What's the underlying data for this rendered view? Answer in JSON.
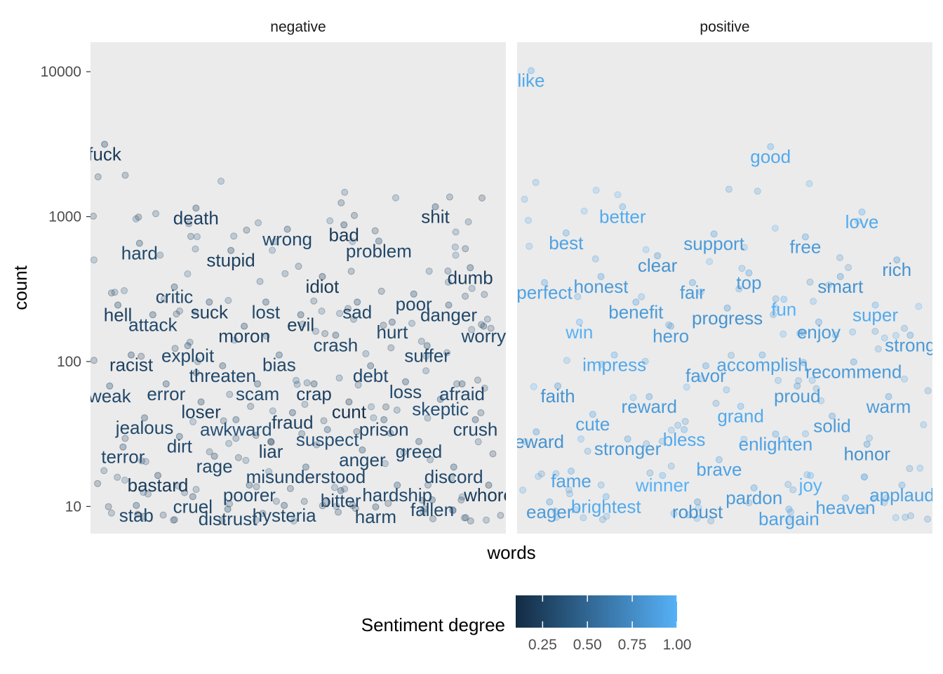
{
  "chart_data": {
    "type": "scatter",
    "panels": [
      "negative",
      "positive"
    ],
    "xlabel": "words",
    "ylabel": "count",
    "y_scale": "log10",
    "ylim": [
      6.5,
      16000
    ],
    "y_ticks": [
      "10",
      "100",
      "1000",
      "10000"
    ],
    "y_tick_values": [
      10,
      100,
      1000,
      10000
    ],
    "grid": false,
    "panel_background": "#ebebeb",
    "legend": {
      "title": "Sentiment degree",
      "position": "bottom",
      "ticks": [
        "0.25",
        "0.50",
        "0.75",
        "1.00"
      ],
      "tick_values": [
        0.25,
        0.5,
        0.75,
        1.0
      ],
      "range": [
        0.1,
        1.0
      ],
      "color_low": "#132B43",
      "color_high": "#56B1F7"
    },
    "labeled_points": {
      "negative": [
        {
          "word": "fuck",
          "count": 2700,
          "degree": 0.2
        },
        {
          "word": "bad",
          "count": 750,
          "degree": 0.2
        },
        {
          "word": "death",
          "count": 980,
          "degree": 0.25
        },
        {
          "word": "shit",
          "count": 1000,
          "degree": 0.25
        },
        {
          "word": "wrong",
          "count": 700,
          "degree": 0.3
        },
        {
          "word": "hard",
          "count": 560,
          "degree": 0.3
        },
        {
          "word": "problem",
          "count": 580,
          "degree": 0.3
        },
        {
          "word": "stupid",
          "count": 500,
          "degree": 0.25
        },
        {
          "word": "dumb",
          "count": 380,
          "degree": 0.25
        },
        {
          "word": "idiot",
          "count": 330,
          "degree": 0.2
        },
        {
          "word": "critic",
          "count": 280,
          "degree": 0.3
        },
        {
          "word": "poor",
          "count": 250,
          "degree": 0.3
        },
        {
          "word": "lost",
          "count": 220,
          "degree": 0.3
        },
        {
          "word": "hell",
          "count": 210,
          "degree": 0.25
        },
        {
          "word": "sad",
          "count": 220,
          "degree": 0.3
        },
        {
          "word": "suck",
          "count": 220,
          "degree": 0.25
        },
        {
          "word": "danger",
          "count": 210,
          "degree": 0.3
        },
        {
          "word": "evil",
          "count": 180,
          "degree": 0.25
        },
        {
          "word": "attack",
          "count": 180,
          "degree": 0.3
        },
        {
          "word": "hurt",
          "count": 160,
          "degree": 0.3
        },
        {
          "word": "moron",
          "count": 150,
          "degree": 0.25
        },
        {
          "word": "worry",
          "count": 150,
          "degree": 0.3
        },
        {
          "word": "crash",
          "count": 130,
          "degree": 0.3
        },
        {
          "word": "exploit",
          "count": 110,
          "degree": 0.3
        },
        {
          "word": "suffer",
          "count": 110,
          "degree": 0.3
        },
        {
          "word": "bias",
          "count": 95,
          "degree": 0.3
        },
        {
          "word": "racist",
          "count": 95,
          "degree": 0.25
        },
        {
          "word": "debt",
          "count": 80,
          "degree": 0.3
        },
        {
          "word": "threaten",
          "count": 80,
          "degree": 0.3
        },
        {
          "word": "afraid",
          "count": 60,
          "degree": 0.3
        },
        {
          "word": "crap",
          "count": 60,
          "degree": 0.25
        },
        {
          "word": "error",
          "count": 60,
          "degree": 0.3
        },
        {
          "word": "loss",
          "count": 62,
          "degree": 0.3
        },
        {
          "word": "scam",
          "count": 60,
          "degree": 0.3
        },
        {
          "word": "weak",
          "count": 58,
          "degree": 0.3
        },
        {
          "word": "cunt",
          "count": 45,
          "degree": 0.15
        },
        {
          "word": "loser",
          "count": 45,
          "degree": 0.25
        },
        {
          "word": "skeptic",
          "count": 47,
          "degree": 0.35
        },
        {
          "word": "fraud",
          "count": 38,
          "degree": 0.25
        },
        {
          "word": "jealous",
          "count": 35,
          "degree": 0.3
        },
        {
          "word": "prison",
          "count": 34,
          "degree": 0.3
        },
        {
          "word": "awkward",
          "count": 34,
          "degree": 0.35
        },
        {
          "word": "crush",
          "count": 34,
          "degree": 0.3
        },
        {
          "word": "suspect",
          "count": 29,
          "degree": 0.35
        },
        {
          "word": "dirt",
          "count": 26,
          "degree": 0.3
        },
        {
          "word": "greed",
          "count": 24,
          "degree": 0.3
        },
        {
          "word": "liar",
          "count": 24,
          "degree": 0.25
        },
        {
          "word": "terror",
          "count": 22,
          "degree": 0.3
        },
        {
          "word": "anger",
          "count": 21,
          "degree": 0.3
        },
        {
          "word": "rage",
          "count": 19,
          "degree": 0.3
        },
        {
          "word": "discord",
          "count": 16,
          "degree": 0.3
        },
        {
          "word": "misunderstood",
          "count": 16,
          "degree": 0.3
        },
        {
          "word": "bastard",
          "count": 14,
          "degree": 0.2
        },
        {
          "word": "hardship",
          "count": 12,
          "degree": 0.3
        },
        {
          "word": "poorer",
          "count": 12,
          "degree": 0.3
        },
        {
          "word": "whore",
          "count": 12,
          "degree": 0.2
        },
        {
          "word": "bitter",
          "count": 11,
          "degree": 0.3
        },
        {
          "word": "cruel",
          "count": 10,
          "degree": 0.3
        },
        {
          "word": "fallen",
          "count": 9.5,
          "degree": 0.3
        },
        {
          "word": "hysteria",
          "count": 8.7,
          "degree": 0.3
        },
        {
          "word": "stab",
          "count": 8.7,
          "degree": 0.3
        },
        {
          "word": "harm",
          "count": 8.5,
          "degree": 0.3
        },
        {
          "word": "distrust",
          "count": 8.2,
          "degree": 0.3
        }
      ],
      "positive": [
        {
          "word": "like",
          "count": 8700,
          "degree": 0.95
        },
        {
          "word": "good",
          "count": 2600,
          "degree": 0.95
        },
        {
          "word": "better",
          "count": 1000,
          "degree": 0.95
        },
        {
          "word": "love",
          "count": 920,
          "degree": 0.95
        },
        {
          "word": "support",
          "count": 650,
          "degree": 0.85
        },
        {
          "word": "best",
          "count": 660,
          "degree": 0.9
        },
        {
          "word": "free",
          "count": 620,
          "degree": 0.85
        },
        {
          "word": "clear",
          "count": 460,
          "degree": 0.8
        },
        {
          "word": "rich",
          "count": 430,
          "degree": 0.8
        },
        {
          "word": "top",
          "count": 350,
          "degree": 0.85
        },
        {
          "word": "honest",
          "count": 330,
          "degree": 0.85
        },
        {
          "word": "smart",
          "count": 330,
          "degree": 0.8
        },
        {
          "word": "fair",
          "count": 300,
          "degree": 0.85
        },
        {
          "word": "perfect",
          "count": 300,
          "degree": 0.9
        },
        {
          "word": "fun",
          "count": 230,
          "degree": 1.0
        },
        {
          "word": "benefit",
          "count": 220,
          "degree": 0.85
        },
        {
          "word": "super",
          "count": 210,
          "degree": 0.95
        },
        {
          "word": "progress",
          "count": 200,
          "degree": 0.8
        },
        {
          "word": "win",
          "count": 160,
          "degree": 1.0
        },
        {
          "word": "enjoy",
          "count": 160,
          "degree": 0.85
        },
        {
          "word": "hero",
          "count": 150,
          "degree": 0.85
        },
        {
          "word": "strong",
          "count": 130,
          "degree": 0.85
        },
        {
          "word": "accomplish",
          "count": 95,
          "degree": 0.9
        },
        {
          "word": "impress",
          "count": 95,
          "degree": 0.95
        },
        {
          "word": "recommend",
          "count": 85,
          "degree": 0.85
        },
        {
          "word": "favor",
          "count": 80,
          "degree": 0.85
        },
        {
          "word": "faith",
          "count": 58,
          "degree": 0.8
        },
        {
          "word": "proud",
          "count": 58,
          "degree": 0.85
        },
        {
          "word": "reward",
          "count": 49,
          "degree": 0.85
        },
        {
          "word": "warm",
          "count": 49,
          "degree": 0.85
        },
        {
          "word": "grand",
          "count": 42,
          "degree": 0.95
        },
        {
          "word": "cute",
          "count": 37,
          "degree": 0.9
        },
        {
          "word": "solid",
          "count": 36,
          "degree": 0.85
        },
        {
          "word": "bless",
          "count": 29,
          "degree": 0.95
        },
        {
          "word": "reward",
          "count": 28,
          "degree": 0.8
        },
        {
          "word": "enlighten",
          "count": 27,
          "degree": 0.9
        },
        {
          "word": "stronger",
          "count": 25,
          "degree": 0.85
        },
        {
          "word": "honor",
          "count": 23,
          "degree": 0.8
        },
        {
          "word": "brave",
          "count": 18,
          "degree": 0.9
        },
        {
          "word": "fame",
          "count": 15,
          "degree": 0.9
        },
        {
          "word": "joy",
          "count": 14,
          "degree": 1.0
        },
        {
          "word": "winner",
          "count": 14,
          "degree": 1.0
        },
        {
          "word": "applaud",
          "count": 12,
          "degree": 0.9
        },
        {
          "word": "pardon",
          "count": 11.5,
          "degree": 0.85
        },
        {
          "word": "brightest",
          "count": 10,
          "degree": 0.95
        },
        {
          "word": "heaven",
          "count": 9.8,
          "degree": 0.9
        },
        {
          "word": "robust",
          "count": 9.2,
          "degree": 0.8
        },
        {
          "word": "eager",
          "count": 9.2,
          "degree": 0.85
        },
        {
          "word": "bargain",
          "count": 8.2,
          "degree": 0.9
        }
      ]
    }
  }
}
